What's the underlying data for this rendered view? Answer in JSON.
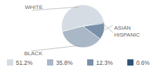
{
  "chart_data": {
    "type": "pie",
    "categories": [
      "WHITE",
      "BLACK",
      "ASIAN",
      "HISPANIC"
    ],
    "values": [
      51.2,
      35.8,
      12.3,
      0.6
    ],
    "value_labels": [
      "51.2%",
      "35.8%",
      "12.3%",
      "0.6%"
    ],
    "colors": [
      "#d5dce4",
      "#a9b7c7",
      "#7890a9",
      "#2e5577"
    ]
  }
}
